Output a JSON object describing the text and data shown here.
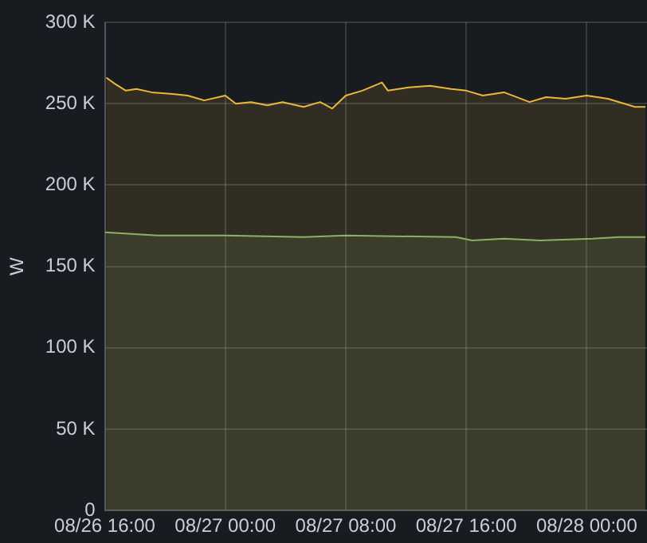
{
  "chart_data": {
    "type": "area",
    "ylabel": "W",
    "xlim": [
      "--08-26T16:00",
      "--08-28T04:00"
    ],
    "xticks": [
      {
        "value": "--08-26T16:00",
        "label": "08/26 16:00"
      },
      {
        "value": "--08-27T00:00",
        "label": "08/27 00:00"
      },
      {
        "value": "--08-27T08:00",
        "label": "08/27 08:00"
      },
      {
        "value": "--08-27T16:00",
        "label": "08/27 16:00"
      },
      {
        "value": "--08-28T00:00",
        "label": "08/28 00:00"
      }
    ],
    "ylim": [
      0,
      300000
    ],
    "yticks": [
      {
        "value": 0,
        "label": "0"
      },
      {
        "value": 50000,
        "label": "50 K"
      },
      {
        "value": 100000,
        "label": "100 K"
      },
      {
        "value": 150000,
        "label": "150 K"
      },
      {
        "value": 200000,
        "label": "200 K"
      },
      {
        "value": 250000,
        "label": "250 K"
      },
      {
        "value": 300000,
        "label": "300 K"
      }
    ],
    "grid": true,
    "series": [
      {
        "color": "#eab839",
        "x": [
          "--08-26T16:06",
          "--08-26T16:42",
          "--08-26T17:24",
          "--08-26T18:06",
          "--08-26T19:06",
          "--08-26T20:30",
          "--08-26T21:30",
          "--08-26T22:36",
          "--08-27T00:00",
          "--08-27T00:42",
          "--08-27T01:42",
          "--08-27T02:48",
          "--08-27T03:48",
          "--08-27T05:12",
          "--08-27T06:18",
          "--08-27T07:06",
          "--08-27T08:00",
          "--08-27T09:06",
          "--08-27T10:24",
          "--08-27T10:48",
          "--08-27T12:12",
          "--08-27T13:36",
          "--08-27T15:00",
          "--08-27T16:00",
          "--08-27T17:06",
          "--08-27T18:30",
          "--08-27T20:12",
          "--08-27T21:18",
          "--08-27T22:36",
          "--08-28T00:00",
          "--08-28T01:24",
          "--08-28T02:30",
          "--08-28T03:12",
          "--08-28T03:54"
        ],
        "values": [
          266000,
          262000,
          258000,
          259000,
          257000,
          256000,
          255000,
          252000,
          255000,
          250000,
          251000,
          249000,
          251000,
          248000,
          251000,
          247000,
          255000,
          258000,
          263000,
          258000,
          260000,
          261000,
          259000,
          258000,
          255000,
          257000,
          251000,
          254000,
          253000,
          255000,
          253000,
          250000,
          248000,
          248000
        ]
      },
      {
        "color": "#7eb26d",
        "x": [
          "--08-26T16:00",
          "--08-26T19:30",
          "--08-27T00:00",
          "--08-27T05:12",
          "--08-27T08:00",
          "--08-27T15:18",
          "--08-27T16:24",
          "--08-27T18:30",
          "--08-27T20:54",
          "--08-28T00:24",
          "--08-28T02:06",
          "--08-28T03:54"
        ],
        "values": [
          171000,
          169000,
          169000,
          168000,
          169000,
          168000,
          166000,
          167000,
          166000,
          167000,
          168000,
          168000
        ]
      }
    ]
  }
}
